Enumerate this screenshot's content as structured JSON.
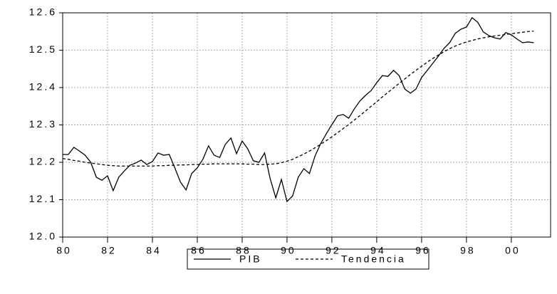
{
  "chart_data": {
    "type": "line",
    "x": [
      1980,
      1980.25,
      1980.5,
      1980.75,
      1981,
      1981.25,
      1981.5,
      1981.75,
      1982,
      1982.25,
      1982.5,
      1982.75,
      1983,
      1983.25,
      1983.5,
      1983.75,
      1984,
      1984.25,
      1984.5,
      1984.75,
      1985,
      1985.25,
      1985.5,
      1985.75,
      1986,
      1986.25,
      1986.5,
      1986.75,
      1987,
      1987.25,
      1987.5,
      1987.75,
      1988,
      1988.25,
      1988.5,
      1988.75,
      1989,
      1989.25,
      1989.5,
      1989.75,
      1990,
      1990.25,
      1990.5,
      1990.75,
      1991,
      1991.25,
      1991.5,
      1991.75,
      1992,
      1992.25,
      1992.5,
      1992.75,
      1993,
      1993.25,
      1993.5,
      1993.75,
      1994,
      1994.25,
      1994.5,
      1994.75,
      1995,
      1995.25,
      1995.5,
      1995.75,
      1996,
      1996.25,
      1996.5,
      1996.75,
      1997,
      1997.25,
      1997.5,
      1997.75,
      1998,
      1998.25,
      1998.5,
      1998.75,
      1999,
      1999.25,
      1999.5,
      1999.75,
      2000,
      2000.25,
      2000.5,
      2000.75,
      2001
    ],
    "series": [
      {
        "name": "PIB",
        "color": "#000000",
        "dashed": false,
        "values": [
          12.221,
          12.221,
          12.24,
          12.23,
          12.219,
          12.2,
          12.16,
          12.152,
          12.164,
          12.124,
          12.16,
          12.177,
          12.192,
          12.198,
          12.206,
          12.194,
          12.202,
          12.225,
          12.219,
          12.221,
          12.185,
          12.147,
          12.126,
          12.17,
          12.185,
          12.208,
          12.244,
          12.219,
          12.213,
          12.248,
          12.265,
          12.223,
          12.257,
          12.236,
          12.204,
          12.2,
          12.225,
          12.156,
          12.105,
          12.154,
          12.095,
          12.11,
          12.16,
          12.183,
          12.17,
          12.217,
          12.25,
          12.276,
          12.301,
          12.324,
          12.328,
          12.318,
          12.343,
          12.364,
          12.379,
          12.392,
          12.413,
          12.432,
          12.43,
          12.446,
          12.432,
          12.396,
          12.385,
          12.396,
          12.427,
          12.446,
          12.465,
          12.484,
          12.505,
          12.52,
          12.545,
          12.556,
          12.562,
          12.587,
          12.575,
          12.549,
          12.539,
          12.533,
          12.53,
          12.547,
          12.541,
          12.53,
          12.52,
          12.522,
          12.52
        ]
      },
      {
        "name": "Tendencia",
        "color": "#000000",
        "dashed": true,
        "values": [
          12.21,
          12.208,
          12.205,
          12.203,
          12.2,
          12.198,
          12.196,
          12.194,
          12.192,
          12.191,
          12.19,
          12.19,
          12.19,
          12.19,
          12.19,
          12.19,
          12.19,
          12.191,
          12.191,
          12.192,
          12.192,
          12.193,
          12.193,
          12.194,
          12.194,
          12.195,
          12.195,
          12.196,
          12.196,
          12.196,
          12.196,
          12.196,
          12.196,
          12.195,
          12.195,
          12.194,
          12.194,
          12.195,
          12.196,
          12.199,
          12.203,
          12.208,
          12.215,
          12.222,
          12.23,
          12.239,
          12.248,
          12.258,
          12.268,
          12.279,
          12.29,
          12.301,
          12.313,
          12.325,
          12.337,
          12.35,
          12.362,
          12.375,
          12.387,
          12.399,
          12.411,
          12.423,
          12.435,
          12.446,
          12.457,
          12.468,
          12.478,
          12.487,
          12.496,
          12.504,
          12.511,
          12.517,
          12.522,
          12.526,
          12.53,
          12.533,
          12.536,
          12.538,
          12.54,
          12.542,
          12.544,
          12.546,
          12.548,
          12.55,
          12.551
        ]
      }
    ],
    "xlim": [
      1980,
      2001.75
    ],
    "xticks": [
      {
        "value": 1980,
        "label": "80"
      },
      {
        "value": 1982,
        "label": "82"
      },
      {
        "value": 1984,
        "label": "84"
      },
      {
        "value": 1986,
        "label": "86"
      },
      {
        "value": 1988,
        "label": "88"
      },
      {
        "value": 1990,
        "label": "90"
      },
      {
        "value": 1992,
        "label": "92"
      },
      {
        "value": 1994,
        "label": "94"
      },
      {
        "value": 1996,
        "label": "96"
      },
      {
        "value": 1998,
        "label": "98"
      },
      {
        "value": 2000,
        "label": "00"
      }
    ],
    "ylim": [
      12.0,
      12.6
    ],
    "yticks": [
      {
        "value": 12.0,
        "label": "12.0"
      },
      12.1,
      12.2,
      12.3,
      12.4,
      12.5,
      12.6
    ],
    "grid": true
  }
}
